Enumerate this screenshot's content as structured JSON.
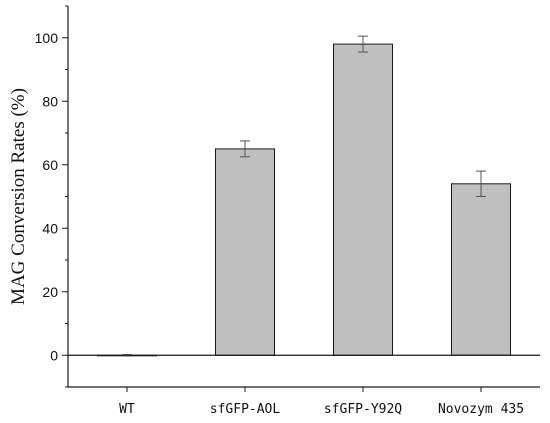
{
  "chart_data": {
    "type": "bar",
    "title": "",
    "xlabel": "",
    "ylabel": "MAG Conversion Rates (%)",
    "categories": [
      "WT",
      "sfGFP-AOL",
      "sfGFP-Y92Q",
      "Novozym 435"
    ],
    "values": [
      0,
      65,
      98,
      54
    ],
    "errors": [
      0.2,
      2.5,
      2.5,
      4
    ],
    "ylim": [
      -10,
      110
    ],
    "yticks": [
      0,
      20,
      40,
      60,
      80,
      100
    ],
    "grid": false,
    "legend": "none",
    "colors": {
      "bar_fill": "#c0c0c0",
      "bar_stroke": "#1a1a1a",
      "axis": "#1a1a1a",
      "error_bar": "#555555"
    }
  }
}
